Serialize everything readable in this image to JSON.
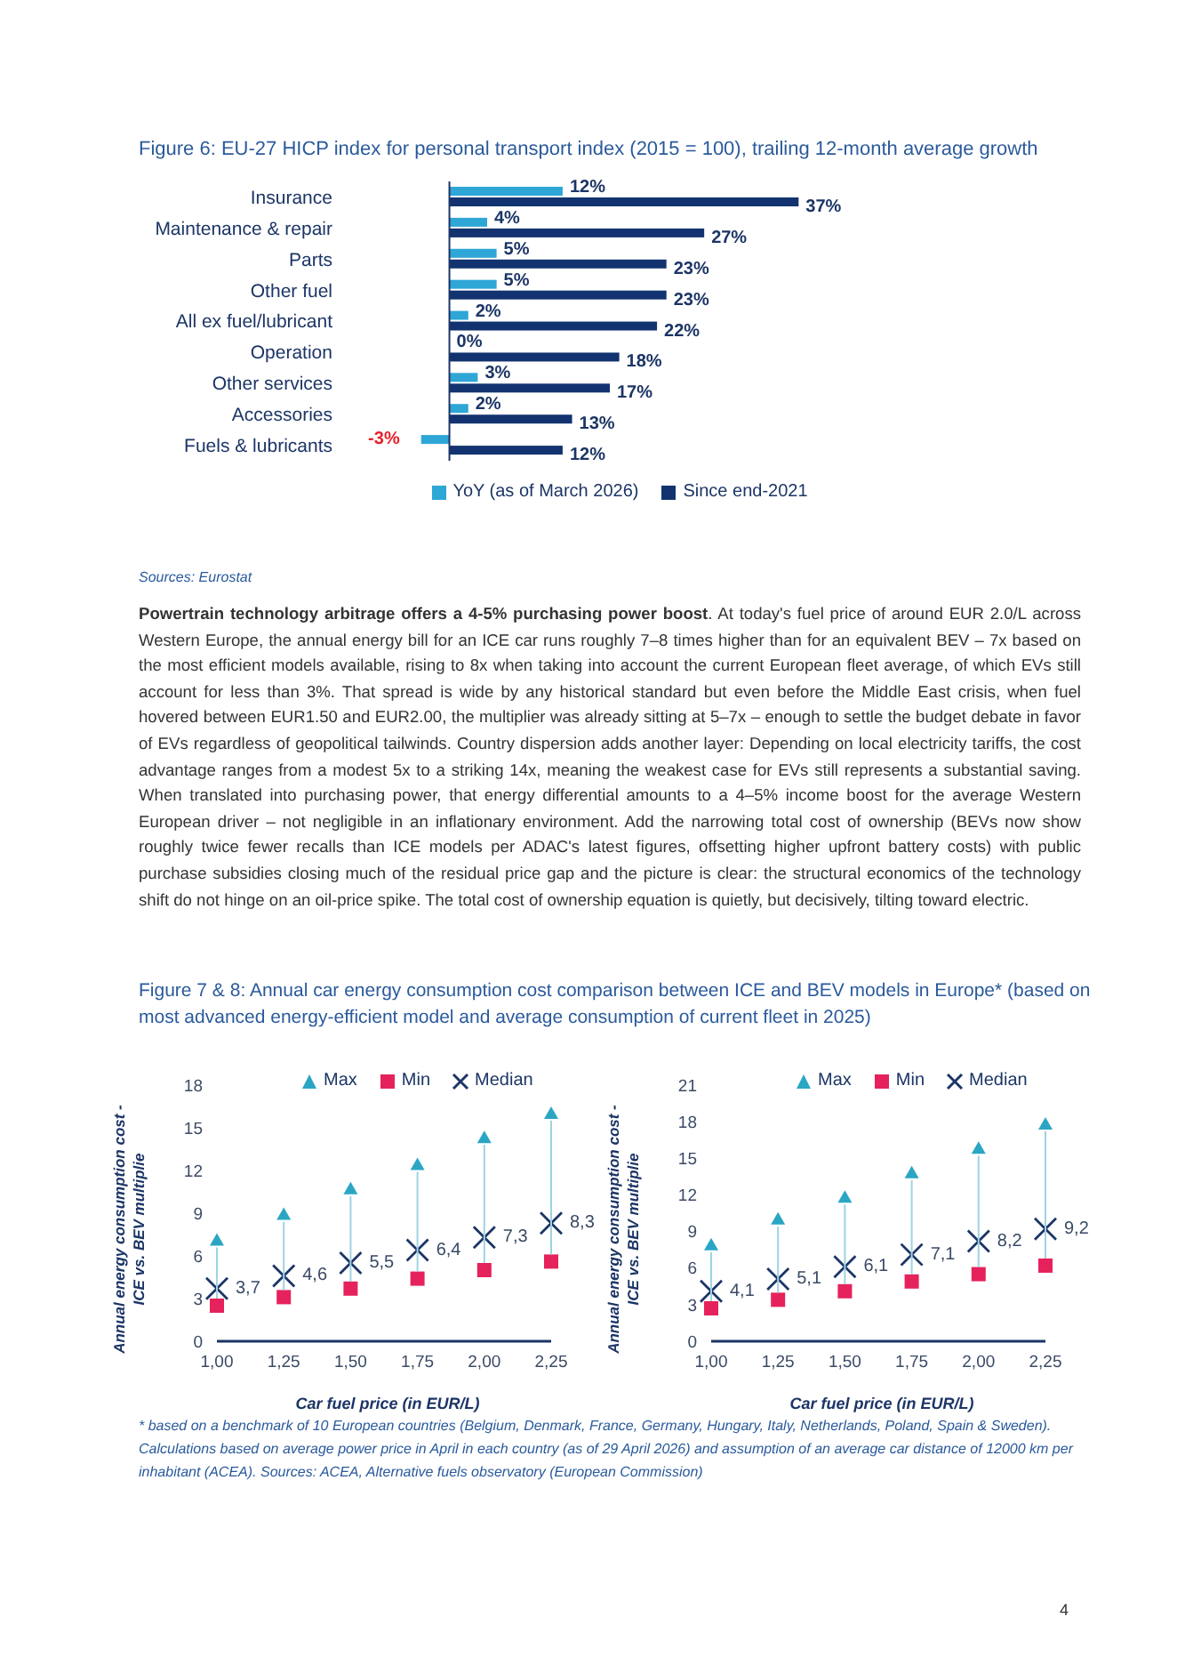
{
  "chart_data": [
    {
      "type": "bar",
      "orientation": "horizontal",
      "title": "Figure 6: EU-27 HICP index for personal transport index (2015 = 100), trailing 12-month average growth",
      "categories": [
        "Insurance",
        "Maintenance & repair",
        "Parts",
        "Other fuel",
        "All ex fuel/lubricant",
        "Operation",
        "Other services",
        "Accessories",
        "Fuels & lubricants"
      ],
      "series": [
        {
          "name": "YoY (as of March 2026)",
          "color": "#2ea6d6",
          "values": [
            12,
            4,
            5,
            5,
            2,
            0,
            3,
            2,
            -3
          ],
          "value_labels": [
            "12%",
            "4%",
            "5%",
            "5%",
            "2%",
            "0%",
            "3%",
            "2%",
            "-3%"
          ]
        },
        {
          "name": "Since end-2021",
          "color": "#12336f",
          "values": [
            37,
            27,
            23,
            23,
            22,
            18,
            17,
            13,
            12
          ],
          "value_labels": [
            "37%",
            "27%",
            "23%",
            "23%",
            "22%",
            "18%",
            "17%",
            "13%",
            "12%"
          ]
        }
      ],
      "legend": "bottom",
      "ref_lines": [
        {
          "axis": "x",
          "value": 0,
          "color": "#1c3566"
        }
      ],
      "annotations": [
        "Sources: Eurostat",
        "Powertrain technology arbitrage offers a 4-5% purchasing power boost. At today's fuel price of around EUR 2.0/L across Western Europe, the annual energy bill for an ICE car runs roughly 7–8 times higher than for an equivalent BEV – 7x based on the most efficient models available, rising to 8x when taking into account the current European fleet average, of which EVs still account for less than 3%. That spread is wide by any historical standard but even before the Middle East crisis, when fuel hovered between EUR1.50 and EUR2.00, the multiplier was already sitting at 5–7x – enough to settle the budget debate in favor of EVs regardless of geopolitical tailwinds. Country dispersion adds another layer: Depending on local electricity tariffs, the cost advantage ranges from a modest 5x to a striking 14x, meaning the weakest case for EVs still represents a substantial saving. When translated into purchasing power, that energy differential amounts to a 4–5% income boost for the average Western European driver – not negligible in an inflationary environment. Add the narrowing total cost of ownership (BEVs now show roughly twice fewer recalls than ICE models per ADAC's latest figures, offsetting higher upfront battery costs) with public purchase subsidies closing much of the residual price gap and the picture is clear: the structural economics of the technology shift do not hinge on an oil-price spike. The total cost of ownership equation is quietly, but decisively, tilting toward electric."
      ]
    },
    {
      "type": "scatter",
      "title": "Figure 7 & 8: Annual car energy consumption cost comparison between ICE and BEV models in Europe* (based on most advanced energy-efficient model and average consumption of current fleet in 2025)",
      "categories": [
        "1,00",
        "1,25",
        "1,50",
        "1,75",
        "2,00",
        "2,25"
      ],
      "series": [
        {
          "name": "Max",
          "color": "#2aa6c4",
          "marker": "triangle",
          "values": [
            7.1,
            8.9,
            10.7,
            12.4,
            14.3,
            16.0
          ]
        },
        {
          "name": "Min",
          "color": "#e5225b",
          "marker": "square",
          "values": [
            2.5,
            3.1,
            3.7,
            4.4,
            5.0,
            5.6
          ]
        },
        {
          "name": "Median",
          "color": "#1c3566",
          "marker": "cross",
          "values": [
            3.7,
            4.6,
            5.5,
            6.4,
            7.3,
            8.3
          ],
          "value_labels": [
            "3,7",
            "4,6",
            "5,5",
            "6,4",
            "7,3",
            "8,3"
          ]
        }
      ],
      "ylim": [
        0,
        18
      ],
      "yticks": [
        0,
        3,
        6,
        9,
        12,
        15,
        18
      ],
      "xlabel": "Car fuel price (in EUR/L)",
      "ylabel": "Annual energy consumption cost - ICE vs. BEV multiplie",
      "legend": "top",
      "grid": false
    },
    {
      "type": "scatter",
      "categories": [
        "1,00",
        "1,25",
        "1,50",
        "1,75",
        "2,00",
        "2,25"
      ],
      "series": [
        {
          "name": "Max",
          "color": "#2aa6c4",
          "marker": "triangle",
          "values": [
            7.9,
            10.0,
            11.8,
            13.8,
            15.8,
            17.8
          ]
        },
        {
          "name": "Min",
          "color": "#e5225b",
          "marker": "square",
          "values": [
            2.7,
            3.4,
            4.1,
            4.9,
            5.5,
            6.2
          ]
        },
        {
          "name": "Median",
          "color": "#1c3566",
          "marker": "cross",
          "values": [
            4.1,
            5.1,
            6.1,
            7.1,
            8.2,
            9.2
          ],
          "value_labels": [
            "4,1",
            "5,1",
            "6,1",
            "7,1",
            "8,2",
            "9,2"
          ]
        }
      ],
      "ylim": [
        0,
        21
      ],
      "yticks": [
        0,
        3,
        6,
        9,
        12,
        15,
        18,
        21
      ],
      "xlabel": "Car fuel price (in EUR/L)",
      "ylabel": "Annual energy consumption cost - ICE vs. BEV multiplie",
      "legend": "top",
      "grid": false,
      "annotations": [
        "* based on a benchmark of 10 European countries (Belgium, Denmark, France, Germany, Hungary, Italy, Netherlands, Poland, Spain & Sweden). Calculations based on average power price in April in each country (as of 29 April 2026) and assumption of an average car distance of 12000 km per inhabitant (ACEA). Sources: ACEA, Alternative fuels observatory (European Commission)",
        "4"
      ]
    }
  ]
}
